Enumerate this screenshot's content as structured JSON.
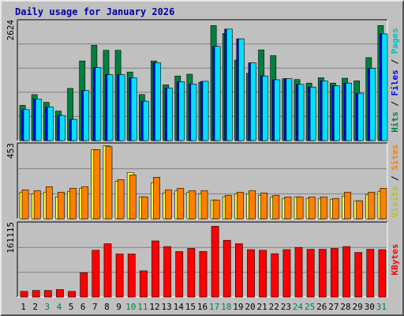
{
  "chart_data": {
    "type": "bar",
    "title": "Daily usage for January 2026",
    "title_color": "#0000a0",
    "days": [
      "1",
      "2",
      "3",
      "4",
      "5",
      "6",
      "7",
      "8",
      "9",
      "10",
      "11",
      "12",
      "13",
      "14",
      "15",
      "16",
      "17",
      "18",
      "19",
      "20",
      "21",
      "22",
      "23",
      "24",
      "25",
      "26",
      "27",
      "28",
      "29",
      "30",
      "31"
    ],
    "weekend_days": [
      "3",
      "4",
      "10",
      "11",
      "17",
      "18",
      "24",
      "25",
      "31"
    ],
    "weekday_color": "#000000",
    "weekend_color": "#008040",
    "panels": [
      {
        "name": "hits-files-pages",
        "ymax": 2624,
        "ymax_label": "2624",
        "side_labels": [
          {
            "text": "Hits",
            "color": "#008040"
          },
          {
            "text": " / ",
            "color": "#000000"
          },
          {
            "text": "Files",
            "color": "#0000ff"
          },
          {
            "text": " / ",
            "color": "#000000"
          },
          {
            "text": "Pages",
            "color": "#00c0c0"
          }
        ],
        "series": [
          {
            "name": "Hits",
            "color": "#008040",
            "values": [
              796,
              1038,
              864,
              667,
              1180,
              1800,
              2155,
              2040,
              2040,
              1550,
              1040,
              1800,
              1260,
              1460,
              1500,
              1320,
              2600,
              2420,
              1820,
              1520,
              2050,
              1920,
              1400,
              1380,
              1300,
              1420,
              1300,
              1410,
              1350,
              1875,
              2600
            ]
          },
          {
            "name": "Files",
            "color": "#0000ff",
            "values": [
              700,
              940,
              760,
              570,
              480,
              1130,
              1650,
              1490,
              1490,
              1420,
              890,
              1760,
              1190,
              1330,
              1280,
              1340,
              2130,
              2520,
              2300,
              1760,
              1460,
              1375,
              1400,
              1270,
              1210,
              1350,
              1240,
              1300,
              1070,
              1630,
              2410
            ]
          },
          {
            "name": "Pages",
            "color": "#00e0ff",
            "values": [
              700,
              940,
              760,
              570,
              480,
              1130,
              1650,
              1490,
              1490,
              1420,
              890,
              1760,
              1190,
              1330,
              1280,
              1340,
              2130,
              2520,
              2300,
              1760,
              1460,
              1375,
              1400,
              1270,
              1210,
              1350,
              1240,
              1300,
              1070,
              1630,
              2410
            ]
          }
        ]
      },
      {
        "name": "visits-sites",
        "ymax": 453,
        "ymax_label": "453",
        "side_labels": [
          {
            "text": "Visits",
            "color": "#c0c000"
          },
          {
            "text": " / ",
            "color": "#000000"
          },
          {
            "text": "Sites",
            "color": "#ff8000"
          }
        ],
        "series": [
          {
            "name": "Visits",
            "color": "#ffff40",
            "values": [
              170,
              160,
              170,
              140,
              175,
              195,
              440,
              465,
              240,
              295,
              140,
              230,
              165,
              180,
              170,
              160,
              120,
              140,
              160,
              160,
              150,
              140,
              130,
              140,
              130,
              130,
              125,
              145,
              115,
              155,
              175
            ]
          },
          {
            "name": "Sites",
            "color": "#ff8000",
            "values": [
              185,
              180,
              205,
              170,
              195,
              205,
              440,
              460,
              250,
              280,
              140,
              265,
              185,
              195,
              180,
              180,
              120,
              150,
              170,
              180,
              165,
              150,
              140,
              140,
              140,
              140,
              130,
              170,
              115,
              170,
              195
            ]
          }
        ]
      },
      {
        "name": "kbytes",
        "ymax": 161115,
        "ymax_label": "161115",
        "side_labels": [
          {
            "text": "KBytes",
            "color": "#ff0000"
          }
        ],
        "series": [
          {
            "name": "KBytes",
            "color": "#ff0000",
            "values": [
              12900,
              15000,
              15000,
              17100,
              12900,
              55700,
              107100,
              122100,
              98600,
              98600,
              60000,
              128600,
              115700,
              104100,
              111400,
              104300,
              162100,
              130000,
              122100,
              108600,
              107100,
              99300,
              108600,
              113600,
              109300,
              109300,
              111400,
              115700,
              102100,
              109300,
              108600
            ]
          }
        ]
      }
    ]
  }
}
